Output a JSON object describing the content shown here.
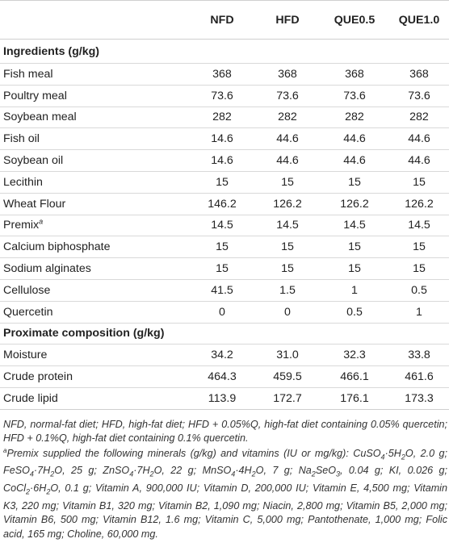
{
  "table": {
    "columns": [
      "",
      "NFD",
      "HFD",
      "QUE0.5",
      "QUE1.0"
    ],
    "sections": [
      {
        "title": "Ingredients (g/kg)",
        "rows": [
          {
            "label": "Fish meal",
            "values": [
              "368",
              "368",
              "368",
              "368"
            ]
          },
          {
            "label": "Poultry meal",
            "values": [
              "73.6",
              "73.6",
              "73.6",
              "73.6"
            ]
          },
          {
            "label": "Soybean meal",
            "values": [
              "282",
              "282",
              "282",
              "282"
            ]
          },
          {
            "label": "Fish oil",
            "values": [
              "14.6",
              "44.6",
              "44.6",
              "44.6"
            ]
          },
          {
            "label": "Soybean oil",
            "values": [
              "14.6",
              "44.6",
              "44.6",
              "44.6"
            ]
          },
          {
            "label": "Lecithin",
            "values": [
              "15",
              "15",
              "15",
              "15"
            ]
          },
          {
            "label": "Wheat Flour",
            "values": [
              "146.2",
              "126.2",
              "126.2",
              "126.2"
            ]
          },
          {
            "label": "Premix",
            "sup": "a",
            "values": [
              "14.5",
              "14.5",
              "14.5",
              "14.5"
            ]
          },
          {
            "label": "Calcium biphosphate",
            "values": [
              "15",
              "15",
              "15",
              "15"
            ]
          },
          {
            "label": "Sodium alginates",
            "values": [
              "15",
              "15",
              "15",
              "15"
            ]
          },
          {
            "label": "Cellulose",
            "values": [
              "41.5",
              "1.5",
              "1",
              "0.5"
            ]
          },
          {
            "label": "Quercetin",
            "values": [
              "0",
              "0",
              "0.5",
              "1"
            ]
          }
        ]
      },
      {
        "title": "Proximate composition (g/kg)",
        "rows": [
          {
            "label": "Moisture",
            "values": [
              "34.2",
              "31.0",
              "32.3",
              "33.8"
            ]
          },
          {
            "label": "Crude protein",
            "values": [
              "464.3",
              "459.5",
              "466.1",
              "461.6"
            ]
          },
          {
            "label": "Crude lipid",
            "values": [
              "113.9",
              "172.7",
              "176.1",
              "173.3"
            ]
          }
        ]
      }
    ]
  },
  "notes": {
    "abbrev": "NFD, normal-fat diet; HFD, high-fat diet; HFD + 0.05%Q, high-fat diet containing 0.05% quercetin; HFD + 0.1%Q, high-fat diet containing 0.1% quercetin.",
    "premix_marker": "a",
    "premix": "Premix supplied the following minerals (g/kg) and vitamins (IU or mg/kg): CuSO4·5H2O, 2.0 g; FeSO4·7H2O, 25 g; ZnSO4·7H2O, 22 g; MnSO4·4H2O, 7 g; Na2SeO3, 0.04 g; KI, 0.026 g; CoCl2·6H2O, 0.1 g; Vitamin A, 900,000 IU; Vitamin D, 200,000 IU; Vitamin E, 4,500 mg; Vitamin K3, 220 mg; Vitamin B1, 320 mg; Vitamin B2, 1,090 mg; Niacin, 2,800 mg; Vitamin B5, 2,000 mg; Vitamin B6, 500 mg; Vitamin B12, 1.6 mg; Vitamin C, 5,000 mg; Pantothenate, 1,000 mg; Folic acid, 165 mg; Choline, 60,000 mg."
  }
}
